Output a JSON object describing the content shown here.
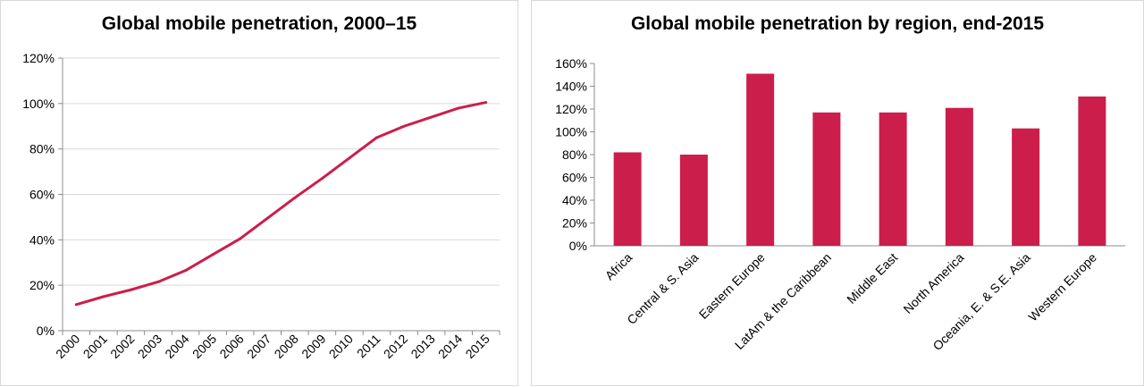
{
  "chart_data": [
    {
      "type": "line",
      "title": "Global mobile penetration, 2000–15",
      "xlabel": "",
      "ylabel": "",
      "x": [
        "2000",
        "2001",
        "2002",
        "2003",
        "2004",
        "2005",
        "2006",
        "2007",
        "2008",
        "2009",
        "2010",
        "2011",
        "2012",
        "2013",
        "2014",
        "2015"
      ],
      "series": [
        {
          "values": [
            11.5,
            15,
            18,
            21.5,
            26.5,
            33.5,
            40.5,
            49.5,
            58.5,
            67,
            76,
            85,
            90,
            94,
            98,
            100.5
          ]
        }
      ],
      "ylim": [
        0,
        120
      ],
      "yticks": [
        "0%",
        "20%",
        "40%",
        "60%",
        "80%",
        "100%",
        "120%"
      ],
      "grid": true,
      "legend": "none",
      "color": "#cc1e4a"
    },
    {
      "type": "bar",
      "title": "Global mobile penetration by region, end-2015",
      "xlabel": "",
      "ylabel": "",
      "categories": [
        "Africa",
        "Central & S. Asia",
        "Eastern Europe",
        "LatAm & the Caribbean",
        "Middle East",
        "North America",
        "Oceania, E. & S.E. Asia",
        "Western Europe"
      ],
      "values": [
        82,
        80,
        151,
        117,
        117,
        121,
        103,
        131
      ],
      "ylim": [
        0,
        160
      ],
      "yticks": [
        "0%",
        "20%",
        "40%",
        "60%",
        "80%",
        "100%",
        "120%",
        "140%",
        "160%"
      ],
      "grid": true,
      "legend": "none",
      "color": "#cc1e4a"
    }
  ]
}
